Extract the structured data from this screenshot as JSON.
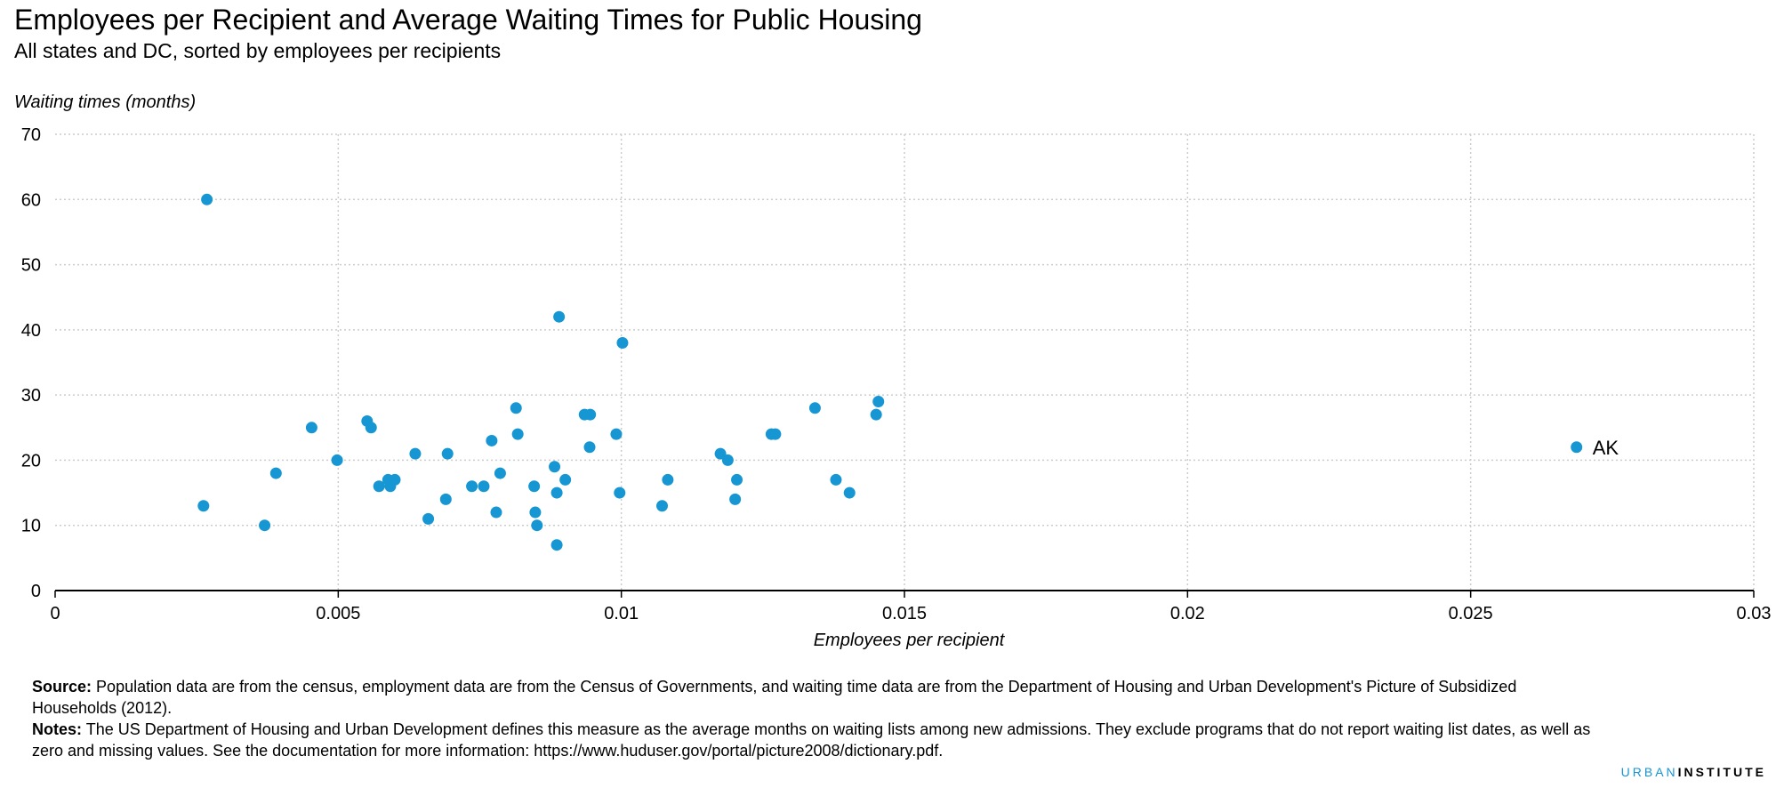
{
  "title": "Employees per Recipient and Average Waiting Times for Public Housing",
  "subtitle": "All states and DC, sorted by employees per recipients",
  "source_label": "Source:",
  "source_text": "Population data are from the census, employment data are from the Census of Governments, and waiting time data are from the Department of Housing and Urban Development's Picture of Subsidized Households (2012).",
  "notes_label": "Notes:",
  "notes_text": "The US Department of Housing and Urban Development defines this measure as the average months on waiting lists among new admissions. They exclude programs that do not report waiting list dates, as well as zero and missing values. See the documentation for more information: https://www.huduser.gov/portal/picture2008/dictionary.pdf.",
  "brand_part1": "URBAN",
  "brand_part2": "INSTITUTE",
  "colors": {
    "point": "#1696d2",
    "grid": "#cccccc",
    "axis": "#000000"
  },
  "chart_data": {
    "type": "scatter",
    "xlabel": "Employees per recipient",
    "ylabel": "Waiting times (months)",
    "xlim": [
      0,
      0.03
    ],
    "ylim": [
      0,
      70
    ],
    "xticks": [
      0,
      0.005,
      0.01,
      0.015,
      0.02,
      0.025,
      0.03
    ],
    "xtick_labels": [
      "0",
      "0.005",
      "0.01",
      "0.015",
      "0.02",
      "0.025",
      "0.03"
    ],
    "yticks": [
      0,
      10,
      20,
      30,
      40,
      50,
      60,
      70
    ],
    "ytick_labels": [
      "0",
      "10",
      "20",
      "30",
      "40",
      "50",
      "60",
      "70"
    ],
    "grid": true,
    "points": [
      {
        "x": 0.00262,
        "y": 13
      },
      {
        "x": 0.00268,
        "y": 60
      },
      {
        "x": 0.0037,
        "y": 10
      },
      {
        "x": 0.0039,
        "y": 18
      },
      {
        "x": 0.00453,
        "y": 25
      },
      {
        "x": 0.00498,
        "y": 20
      },
      {
        "x": 0.00551,
        "y": 26
      },
      {
        "x": 0.00558,
        "y": 25
      },
      {
        "x": 0.00572,
        "y": 16
      },
      {
        "x": 0.00588,
        "y": 17
      },
      {
        "x": 0.00592,
        "y": 16
      },
      {
        "x": 0.006,
        "y": 17
      },
      {
        "x": 0.00636,
        "y": 21
      },
      {
        "x": 0.00659,
        "y": 11
      },
      {
        "x": 0.0069,
        "y": 14
      },
      {
        "x": 0.00693,
        "y": 21
      },
      {
        "x": 0.00736,
        "y": 16
      },
      {
        "x": 0.00757,
        "y": 16
      },
      {
        "x": 0.00771,
        "y": 23
      },
      {
        "x": 0.00779,
        "y": 12
      },
      {
        "x": 0.00786,
        "y": 18
      },
      {
        "x": 0.00814,
        "y": 28
      },
      {
        "x": 0.00817,
        "y": 24
      },
      {
        "x": 0.00846,
        "y": 16
      },
      {
        "x": 0.00848,
        "y": 12
      },
      {
        "x": 0.00851,
        "y": 10
      },
      {
        "x": 0.00882,
        "y": 19
      },
      {
        "x": 0.00886,
        "y": 7
      },
      {
        "x": 0.00886,
        "y": 15
      },
      {
        "x": 0.0089,
        "y": 42
      },
      {
        "x": 0.00901,
        "y": 17
      },
      {
        "x": 0.00935,
        "y": 27
      },
      {
        "x": 0.00945,
        "y": 27
      },
      {
        "x": 0.00944,
        "y": 22
      },
      {
        "x": 0.00991,
        "y": 24
      },
      {
        "x": 0.00997,
        "y": 15
      },
      {
        "x": 0.01002,
        "y": 38
      },
      {
        "x": 0.01072,
        "y": 13
      },
      {
        "x": 0.01082,
        "y": 17
      },
      {
        "x": 0.01175,
        "y": 21
      },
      {
        "x": 0.01188,
        "y": 20
      },
      {
        "x": 0.01201,
        "y": 14
      },
      {
        "x": 0.01204,
        "y": 17
      },
      {
        "x": 0.01265,
        "y": 24
      },
      {
        "x": 0.01272,
        "y": 24
      },
      {
        "x": 0.01342,
        "y": 28
      },
      {
        "x": 0.01379,
        "y": 17
      },
      {
        "x": 0.01403,
        "y": 15
      },
      {
        "x": 0.0145,
        "y": 27
      },
      {
        "x": 0.01454,
        "y": 29
      },
      {
        "x": 0.02687,
        "y": 22,
        "label": "AK"
      }
    ]
  }
}
